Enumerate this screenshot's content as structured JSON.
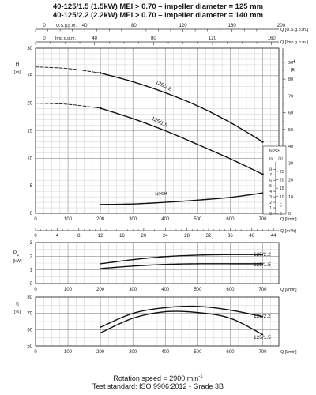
{
  "title_line1": "40-125/1.5 (1.5kW) MEI > 0.70 – impeller diameter = 125 mm",
  "title_line2": "40-125/2.2 (2.2kW) MEI > 0.70 – impeller diameter = 140 mm",
  "footer_rotation": "Rotation speed = 2900 min",
  "footer_rotation_exp": "-1",
  "footer_standard": "Test standard: ISO 9906:2012 - Grade 3B",
  "chart_data": [
    {
      "type": "line",
      "panel": "head-and-npsh",
      "xlabel": "Q [l/min]",
      "xlim": [
        0,
        750
      ],
      "x_ticks": [
        0,
        100,
        200,
        300,
        400,
        500,
        600,
        700
      ],
      "ylabel": "H [m]",
      "ylim": [
        0,
        30
      ],
      "y_ticks": [
        0,
        5,
        10,
        15,
        20,
        25,
        30
      ],
      "right_axis": {
        "label": "H [ft]",
        "ticks": [
          0,
          10,
          20,
          30,
          40,
          50,
          60,
          70,
          80,
          90
        ]
      },
      "top_axis_1": {
        "label": "Q [U.S.g.p.m.]",
        "ticks": [
          0,
          40,
          80,
          120,
          160,
          200
        ]
      },
      "top_axis_2": {
        "label": "Q [Imp.g.p.m.]",
        "ticks": [
          0,
          40,
          80,
          120,
          160
        ]
      },
      "npsh_axis": {
        "label_m": "NPSH [m]",
        "label_ft": "[ft]",
        "m_ticks": [
          0,
          1,
          2,
          3,
          4,
          5,
          6,
          7,
          8
        ],
        "ft_ticks": [
          0,
          5,
          10,
          15,
          20,
          25
        ]
      },
      "series": [
        {
          "name": "125/2.2",
          "x": [
            200,
            300,
            400,
            500,
            600,
            700
          ],
          "y": [
            25.5,
            23.9,
            21.9,
            19.5,
            16.5,
            13.0
          ],
          "dashed_x": [
            0,
            100,
            200
          ],
          "dashed_y": [
            26.6,
            26.3,
            25.5
          ]
        },
        {
          "name": "125/1.5",
          "x": [
            200,
            300,
            400,
            500,
            600,
            700
          ],
          "y": [
            19.1,
            17.2,
            15.0,
            12.5,
            9.9,
            7.1
          ],
          "dashed_x": [
            0,
            100,
            200
          ],
          "dashed_y": [
            20.0,
            19.8,
            19.1
          ]
        },
        {
          "name": "NPSH",
          "x": [
            200,
            300,
            400,
            500,
            600,
            700
          ],
          "y": [
            1.6,
            1.7,
            2.0,
            2.4,
            2.9,
            3.7
          ]
        }
      ],
      "grid": true
    },
    {
      "type": "line",
      "panel": "flow-m3h-axis",
      "xlabel": "Q [m³/h]",
      "x_ticks": [
        0,
        4,
        8,
        12,
        16,
        20,
        24,
        28,
        32,
        36,
        40,
        44
      ]
    },
    {
      "type": "line",
      "panel": "power",
      "xlabel": "Q [l/min]",
      "xlim": [
        0,
        750
      ],
      "x_ticks": [
        0,
        100,
        200,
        300,
        400,
        500,
        600,
        700
      ],
      "ylabel": "P2 [kW]",
      "ylim": [
        0,
        3
      ],
      "y_ticks": [
        0,
        1,
        2,
        3
      ],
      "series": [
        {
          "name": "125/2.2",
          "x": [
            200,
            300,
            400,
            500,
            600,
            700
          ],
          "y": [
            1.45,
            1.75,
            1.97,
            2.08,
            2.12,
            2.12
          ]
        },
        {
          "name": "125/1.5",
          "x": [
            200,
            300,
            400,
            500,
            600,
            700
          ],
          "y": [
            1.1,
            1.28,
            1.4,
            1.45,
            1.45,
            1.45
          ]
        }
      ],
      "grid": true
    },
    {
      "type": "line",
      "panel": "efficiency",
      "xlabel": "Q [l/min]",
      "xlim": [
        0,
        750
      ],
      "x_ticks": [
        0,
        100,
        200,
        300,
        400,
        500,
        600,
        700
      ],
      "ylabel": "η [%]",
      "ylim": [
        50,
        80
      ],
      "y_ticks": [
        50,
        60,
        70,
        80
      ],
      "series": [
        {
          "name": "125/2.2",
          "x": [
            200,
            300,
            400,
            500,
            600,
            700
          ],
          "y": [
            61.5,
            70.0,
            73.5,
            74.3,
            72.0,
            68.0
          ]
        },
        {
          "name": "125/1.5",
          "x": [
            200,
            300,
            400,
            500,
            600,
            700
          ],
          "y": [
            58.0,
            67.0,
            71.0,
            70.5,
            67.0,
            57.0
          ]
        }
      ],
      "grid": true
    }
  ],
  "labels": {
    "usgpm": "U.S.g.p.m.",
    "impgpm": "Imp.g.p.m.",
    "q_usgpm": "Q [U.S.g.p.m.]",
    "q_impgpm": "Q [Imp.g.p.m.]",
    "q_lmin": "Q [l/min]",
    "q_m3h": "Q [m³/h]",
    "h": "H",
    "h_m": "[m]",
    "h_ft": "H",
    "h_ft_unit": "[ft]",
    "npsh": "NPSH",
    "npsh_m": "[m]",
    "npsh_ft": "[ft]",
    "npsh_curve": "NPSH",
    "p2": "P",
    "p2_sub": "2",
    "p2_unit": "[kW]",
    "eta": "η",
    "eta_unit": "[%]",
    "curve_22": "125/2.2",
    "curve_15": "125/1.5"
  }
}
